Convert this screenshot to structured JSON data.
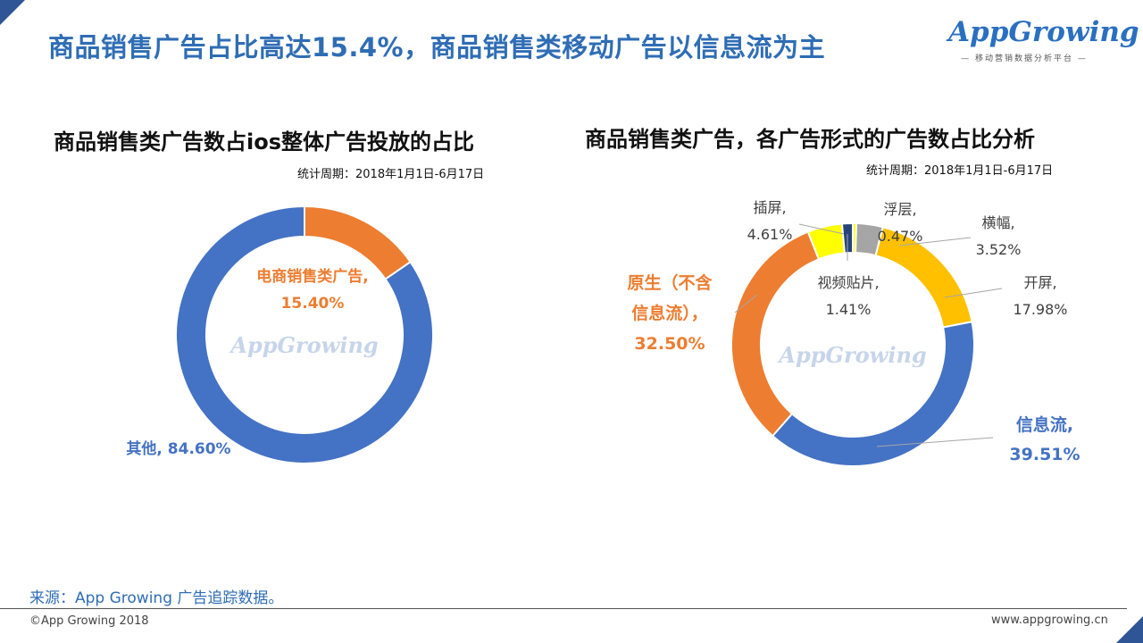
{
  "header": {
    "title": "商品销售广告占比高达15.4%，商品销售类移动广告以信息流为主",
    "logo_text": "AppGrowing",
    "logo_subtitle": "— 移动营销数据分析平台 —"
  },
  "watermark": "AppGrowing",
  "colors": {
    "blue": "#4472c4",
    "orange": "#ed7d31",
    "gold": "#ffc000",
    "gray": "#a5a5a5",
    "yellow": "#ffff00",
    "navy": "#264478",
    "title_blue": "#2f6db5"
  },
  "chart_data": [
    {
      "type": "pie",
      "title": "商品销售类广告数占ios整体广告投放的占比",
      "subtitle": "统计周期：2018年1月1日-6月17日",
      "slices": [
        {
          "name": "电商销售类广告",
          "value": 15.4,
          "label_name": "电商销售类广告,",
          "label_value": "15.40%",
          "color": "#ed7d31"
        },
        {
          "name": "其他",
          "value": 84.6,
          "label_name": "其他, 84.60%",
          "label_value": "",
          "color": "#4472c4"
        }
      ]
    },
    {
      "type": "pie",
      "title": "商品销售类广告，各广告形式的广告数占比分析",
      "subtitle": "统计周期：2018年1月1日-6月17日",
      "slices": [
        {
          "name": "浮层",
          "value": 0.47,
          "label_name": "浮层,",
          "label_value": "0.47%",
          "color": "#ffff00"
        },
        {
          "name": "横幅",
          "value": 3.52,
          "label_name": "横幅,",
          "label_value": "3.52%",
          "color": "#a5a5a5"
        },
        {
          "name": "开屏",
          "value": 17.98,
          "label_name": "开屏,",
          "label_value": "17.98%",
          "color": "#ffc000"
        },
        {
          "name": "信息流",
          "value": 39.51,
          "label_name": "信息流,",
          "label_value": "39.51%",
          "color": "#4472c4"
        },
        {
          "name": "原生（不含信息流）",
          "value": 32.5,
          "label_name": "原生（不含信息流），",
          "label_value": "32.50%",
          "color": "#ed7d31"
        },
        {
          "name": "插屏",
          "value": 4.61,
          "label_name": "插屏,",
          "label_value": "4.61%",
          "color": "#ffff00"
        },
        {
          "name": "视频贴片",
          "value": 1.41,
          "label_name": "视频贴片,",
          "label_value": "1.41%",
          "color": "#264478"
        }
      ]
    }
  ],
  "footer": {
    "source": "来源：App Growing 广告追踪数据。",
    "copyright": "©App Growing 2018",
    "website": "www.appgrowing.cn"
  }
}
